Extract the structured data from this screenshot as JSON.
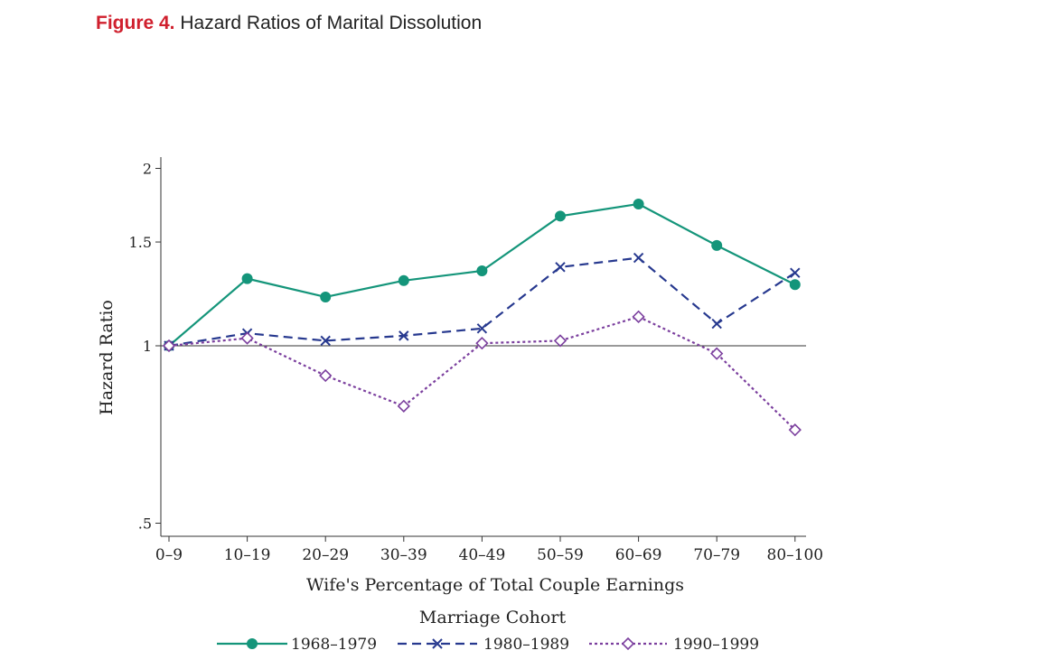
{
  "header": {
    "figure_label": "Figure 4.",
    "figure_title": "Hazard Ratios of Marital Dissolution"
  },
  "chart_data": {
    "type": "line",
    "title": "Hazard Ratios of Marital Dissolution",
    "xlabel": "Wife's Percentage of Total Couple Earnings",
    "ylabel": "Hazard Ratio",
    "categories": [
      "0–9",
      "10–19",
      "20–29",
      "30–39",
      "40–49",
      "50–59",
      "60–69",
      "70–79",
      "80–100"
    ],
    "y_scale": "log",
    "ylim": [
      0.5,
      2
    ],
    "yticks": [
      {
        "value": 0.5,
        "label": ".5"
      },
      {
        "value": 1,
        "label": "1"
      },
      {
        "value": 1.5,
        "label": "1.5"
      },
      {
        "value": 2,
        "label": "2"
      }
    ],
    "reference_line": 1,
    "grid": false,
    "legend": {
      "title": "Marriage Cohort",
      "placement": "bottom"
    },
    "series": [
      {
        "name": "1968–1979",
        "color": "#14957a",
        "marker": "circle",
        "line": "solid",
        "values": [
          1.0,
          1.3,
          1.21,
          1.29,
          1.34,
          1.66,
          1.74,
          1.48,
          1.27
        ]
      },
      {
        "name": "1980–1989",
        "color": "#27398f",
        "marker": "x",
        "line": "dashed",
        "values": [
          1.0,
          1.05,
          1.02,
          1.04,
          1.07,
          1.36,
          1.41,
          1.09,
          1.33
        ]
      },
      {
        "name": "1990–1999",
        "color": "#7b3f9e",
        "marker": "diamond",
        "line": "dotted",
        "values": [
          1.0,
          1.03,
          0.89,
          0.79,
          1.01,
          1.02,
          1.12,
          0.97,
          0.72
        ]
      }
    ]
  }
}
